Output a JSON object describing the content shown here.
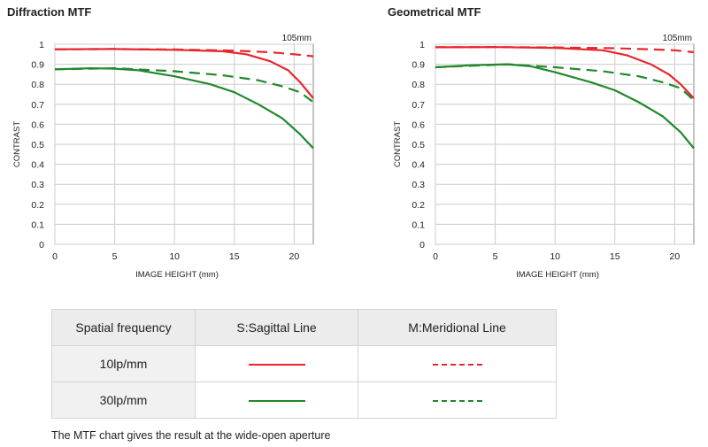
{
  "colors": {
    "red": "#e8262c",
    "green": "#22882c",
    "grid": "#cccccc",
    "axis": "#888888"
  },
  "chart_data": [
    {
      "type": "line",
      "title": "Diffraction MTF",
      "focal_label": "105mm",
      "xlabel": "IMAGE HEIGHT (mm)",
      "ylabel": "CONTRAST",
      "xlim": [
        0,
        21.6
      ],
      "ylim": [
        0,
        1
      ],
      "xticks": [
        0,
        5,
        10,
        15,
        20
      ],
      "yticks": [
        0,
        0.1,
        0.2,
        0.3,
        0.4,
        0.5,
        0.6,
        0.7,
        0.8,
        0.9,
        1
      ],
      "ytick_labels": [
        "0",
        "0.1",
        "0.2",
        "0.3",
        "0.4",
        "0.5",
        "0.6",
        "0.7",
        "0.8",
        "0.9",
        "1"
      ],
      "series": [
        {
          "name": "10lp/mm Sagittal",
          "color": "red",
          "dash": false,
          "x": [
            0,
            5,
            10,
            14,
            16,
            18,
            19.5,
            20.5,
            21.6
          ],
          "y": [
            0.975,
            0.976,
            0.972,
            0.965,
            0.95,
            0.915,
            0.87,
            0.81,
            0.73
          ]
        },
        {
          "name": "10lp/mm Meridional",
          "color": "red",
          "dash": true,
          "x": [
            0,
            5,
            10,
            15,
            18,
            20,
            21.6
          ],
          "y": [
            0.975,
            0.976,
            0.974,
            0.968,
            0.96,
            0.95,
            0.94
          ]
        },
        {
          "name": "30lp/mm Sagittal",
          "color": "green",
          "dash": false,
          "x": [
            0,
            3,
            5,
            7,
            10,
            13,
            15,
            17,
            19,
            20.5,
            21.6
          ],
          "y": [
            0.875,
            0.88,
            0.878,
            0.87,
            0.84,
            0.8,
            0.76,
            0.7,
            0.63,
            0.55,
            0.48
          ]
        },
        {
          "name": "30lp/mm Meridional",
          "color": "green",
          "dash": true,
          "x": [
            0,
            5,
            10,
            14,
            17,
            19,
            20.5,
            21.6
          ],
          "y": [
            0.875,
            0.88,
            0.865,
            0.845,
            0.82,
            0.79,
            0.76,
            0.71
          ]
        }
      ]
    },
    {
      "type": "line",
      "title": "Geometrical MTF",
      "focal_label": "105mm",
      "xlabel": "IMAGE HEIGHT (mm)",
      "ylabel": "CONTRAST",
      "xlim": [
        0,
        21.6
      ],
      "ylim": [
        0,
        1
      ],
      "xticks": [
        0,
        5,
        10,
        15,
        20
      ],
      "yticks": [
        0,
        0.1,
        0.2,
        0.3,
        0.4,
        0.5,
        0.6,
        0.7,
        0.8,
        0.9,
        1
      ],
      "ytick_labels": [
        "0",
        "0.1",
        "0.2",
        "0.3",
        "0.4",
        "0.5",
        "0.6",
        "0.7",
        "0.8",
        "0.9",
        "1"
      ],
      "series": [
        {
          "name": "10lp/mm Sagittal",
          "color": "red",
          "dash": false,
          "x": [
            0,
            5,
            10,
            14,
            16,
            18,
            19.5,
            20.5,
            21.6
          ],
          "y": [
            0.985,
            0.986,
            0.982,
            0.97,
            0.945,
            0.9,
            0.85,
            0.8,
            0.73
          ]
        },
        {
          "name": "10lp/mm Meridional",
          "color": "red",
          "dash": true,
          "x": [
            0,
            5,
            10,
            15,
            18,
            20,
            21.6
          ],
          "y": [
            0.985,
            0.986,
            0.984,
            0.98,
            0.975,
            0.97,
            0.96
          ]
        },
        {
          "name": "30lp/mm Sagittal",
          "color": "green",
          "dash": false,
          "x": [
            0,
            3,
            6,
            8,
            10,
            13,
            15,
            17,
            19,
            20.5,
            21.6
          ],
          "y": [
            0.885,
            0.895,
            0.9,
            0.89,
            0.86,
            0.81,
            0.77,
            0.71,
            0.64,
            0.56,
            0.48
          ]
        },
        {
          "name": "30lp/mm Meridional",
          "color": "green",
          "dash": true,
          "x": [
            0,
            6,
            10,
            14,
            17,
            19,
            20.5,
            21.6
          ],
          "y": [
            0.885,
            0.9,
            0.885,
            0.865,
            0.84,
            0.81,
            0.78,
            0.72
          ]
        }
      ]
    }
  ],
  "legend": {
    "headers": [
      "Spatial frequency",
      "S:Sagittal Line",
      "M:Meridional Line"
    ],
    "rows": [
      {
        "label": "10lp/mm",
        "color": "red"
      },
      {
        "label": "30lp/mm",
        "color": "green"
      }
    ]
  },
  "note": "The MTF chart gives the result at the wide-open aperture"
}
